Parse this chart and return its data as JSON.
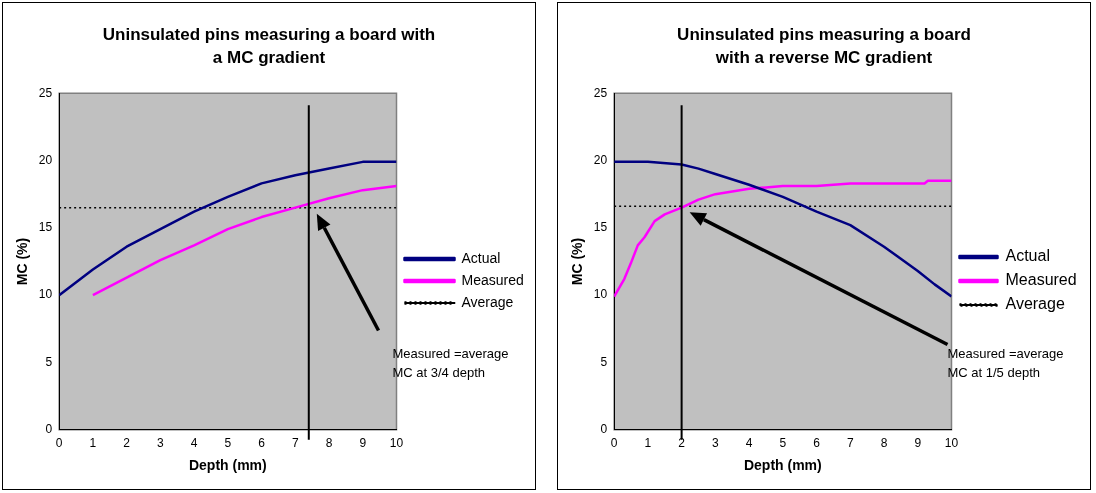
{
  "chart_data": [
    {
      "type": "line",
      "title": "Uninsulated pins measuring a board with a MC gradient",
      "xlabel": "Depth (mm)",
      "ylabel": "MC (%)",
      "xlim": [
        0,
        10
      ],
      "xticks": [
        0,
        1,
        2,
        3,
        4,
        5,
        6,
        7,
        8,
        9,
        10
      ],
      "ylim": [
        0,
        25
      ],
      "yticks": [
        0,
        5,
        10,
        15,
        20,
        25
      ],
      "legend": "right",
      "grid": false,
      "series": [
        {
          "name": "Actual",
          "color": "#000080",
          "x": [
            0,
            1,
            2,
            3,
            4,
            5,
            6,
            7,
            8,
            9,
            10
          ],
          "values": [
            10,
            11.9,
            13.6,
            14.9,
            16.2,
            17.3,
            18.3,
            18.9,
            19.4,
            19.9,
            19.9
          ]
        },
        {
          "name": "Measured",
          "color": "#ff00ff",
          "x": [
            1,
            2,
            3,
            4,
            5,
            6,
            7,
            8,
            9,
            10
          ],
          "values": [
            10,
            11.3,
            12.6,
            13.7,
            14.9,
            15.8,
            16.5,
            17.2,
            17.8,
            18.1
          ]
        },
        {
          "name": "Average",
          "color": "#000000",
          "line_style": "dotted",
          "x": [
            0,
            10
          ],
          "values": [
            16.5,
            16.5
          ]
        }
      ],
      "ref_lines": [
        {
          "axis": "x",
          "value": 7.4,
          "color": "#000000"
        }
      ],
      "annotations": [
        "Measured =average MC at 3/4 depth"
      ]
    },
    {
      "type": "line",
      "title": "Uninsulated pins measuring a board with a reverse MC gradient",
      "xlabel": "Depth (mm)",
      "ylabel": "MC (%)",
      "xlim": [
        0,
        10
      ],
      "xticks": [
        0,
        1,
        2,
        3,
        4,
        5,
        6,
        7,
        8,
        9,
        10
      ],
      "ylim": [
        0,
        25
      ],
      "yticks": [
        0,
        5,
        10,
        15,
        20,
        25
      ],
      "legend": "right",
      "grid": false,
      "series": [
        {
          "name": "Actual",
          "color": "#000080",
          "x": [
            0,
            1,
            2,
            2.5,
            3,
            4,
            5,
            6,
            7,
            8,
            9,
            9.5,
            10
          ],
          "values": [
            19.9,
            19.9,
            19.7,
            19.4,
            19,
            18.2,
            17.3,
            16.2,
            15.2,
            13.6,
            11.8,
            10.8,
            9.9
          ]
        },
        {
          "name": "Measured",
          "color": "#ff00ff",
          "x": [
            0,
            0.3,
            0.5,
            0.7,
            0.9,
            1.2,
            1.5,
            2,
            2.5,
            3,
            3.5,
            4,
            4.5,
            5,
            6,
            7,
            8,
            9.2,
            9.3,
            10
          ],
          "values": [
            9.9,
            11.2,
            12.4,
            13.7,
            14.3,
            15.5,
            16,
            16.5,
            17.1,
            17.5,
            17.7,
            17.9,
            18,
            18.1,
            18.1,
            18.3,
            18.3,
            18.3,
            18.5,
            18.5
          ]
        },
        {
          "name": "Average",
          "color": "#000000",
          "line_style": "dotted",
          "x": [
            0,
            10
          ],
          "values": [
            16.6,
            16.6
          ]
        }
      ],
      "ref_lines": [
        {
          "axis": "x",
          "value": 2,
          "color": "#000000"
        }
      ],
      "annotations": [
        "Measured =average MC at 1/5 depth"
      ]
    }
  ]
}
